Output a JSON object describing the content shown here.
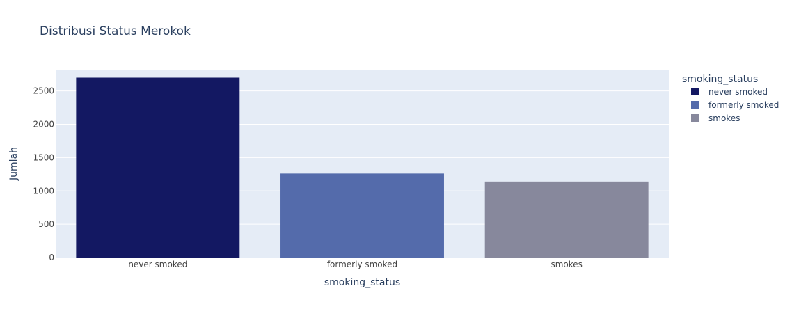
{
  "chart_data": {
    "type": "bar",
    "title": "Distribusi Status Merokok",
    "xlabel": "smoking_status",
    "ylabel": "Jumlah",
    "categories": [
      "never smoked",
      "formerly smoked",
      "smokes"
    ],
    "values": [
      2700,
      1260,
      1140
    ],
    "colors": [
      "#131862",
      "#546bab",
      "#87889c"
    ],
    "ylim": [
      0,
      2820
    ],
    "yticks": [
      0,
      500,
      1000,
      1500,
      2000,
      2500
    ],
    "ytick_labels": [
      "0",
      "500",
      "1000",
      "1500",
      "2000",
      "2500"
    ],
    "grid": true,
    "legend": {
      "title": "smoking_status",
      "placement": "top-right",
      "entries": [
        "never smoked",
        "formerly smoked",
        "smokes"
      ]
    },
    "colors_meta": {
      "plot_background": "#e5ecf6",
      "grid": "#ffffff",
      "text": "#2a3f5f",
      "tick_text": "#444444"
    }
  }
}
